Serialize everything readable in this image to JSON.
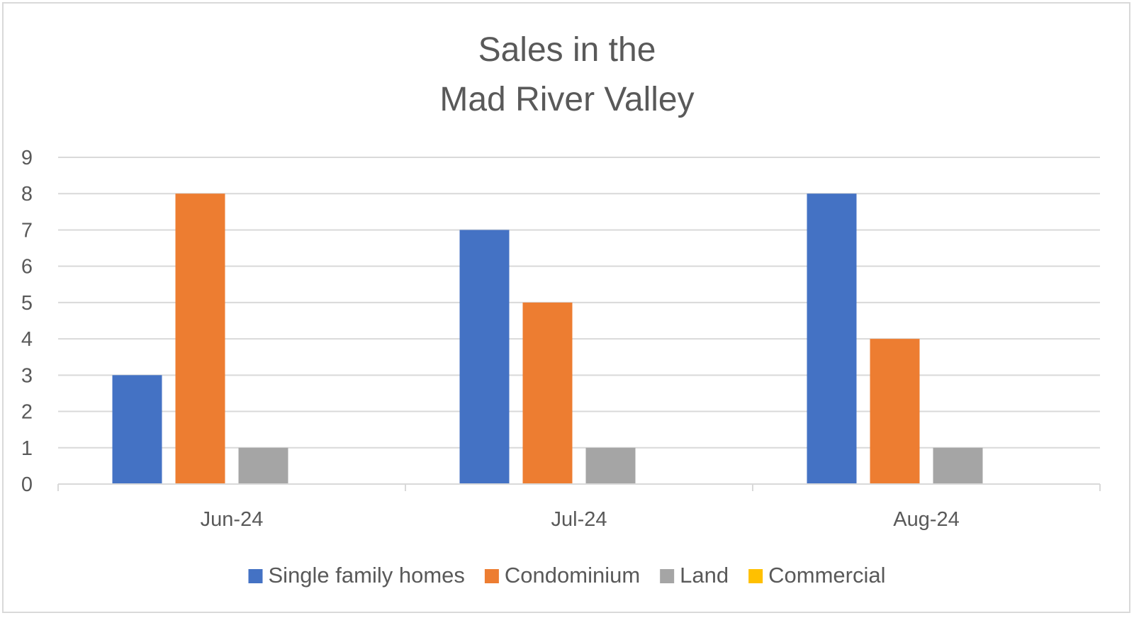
{
  "chart_data": {
    "type": "bar",
    "title_lines": [
      "Sales in the",
      "Mad River Valley"
    ],
    "categories": [
      "Jun-24",
      "Jul-24",
      "Aug-24"
    ],
    "series": [
      {
        "name": "Single family homes",
        "color": "#4472c4",
        "values": [
          3,
          7,
          8
        ]
      },
      {
        "name": "Condominium",
        "color": "#ed7d31",
        "values": [
          8,
          5,
          4
        ]
      },
      {
        "name": "Land",
        "color": "#a5a5a5",
        "values": [
          1,
          1,
          1
        ]
      },
      {
        "name": "Commercial",
        "color": "#ffc000",
        "values": [
          0,
          0,
          0
        ]
      }
    ],
    "ylim": [
      0,
      9
    ],
    "yticks": [
      "0",
      "1",
      "2",
      "3",
      "4",
      "5",
      "6",
      "7",
      "8",
      "9"
    ],
    "grid": true,
    "legend": "bottom",
    "xlabel": "",
    "ylabel": ""
  }
}
